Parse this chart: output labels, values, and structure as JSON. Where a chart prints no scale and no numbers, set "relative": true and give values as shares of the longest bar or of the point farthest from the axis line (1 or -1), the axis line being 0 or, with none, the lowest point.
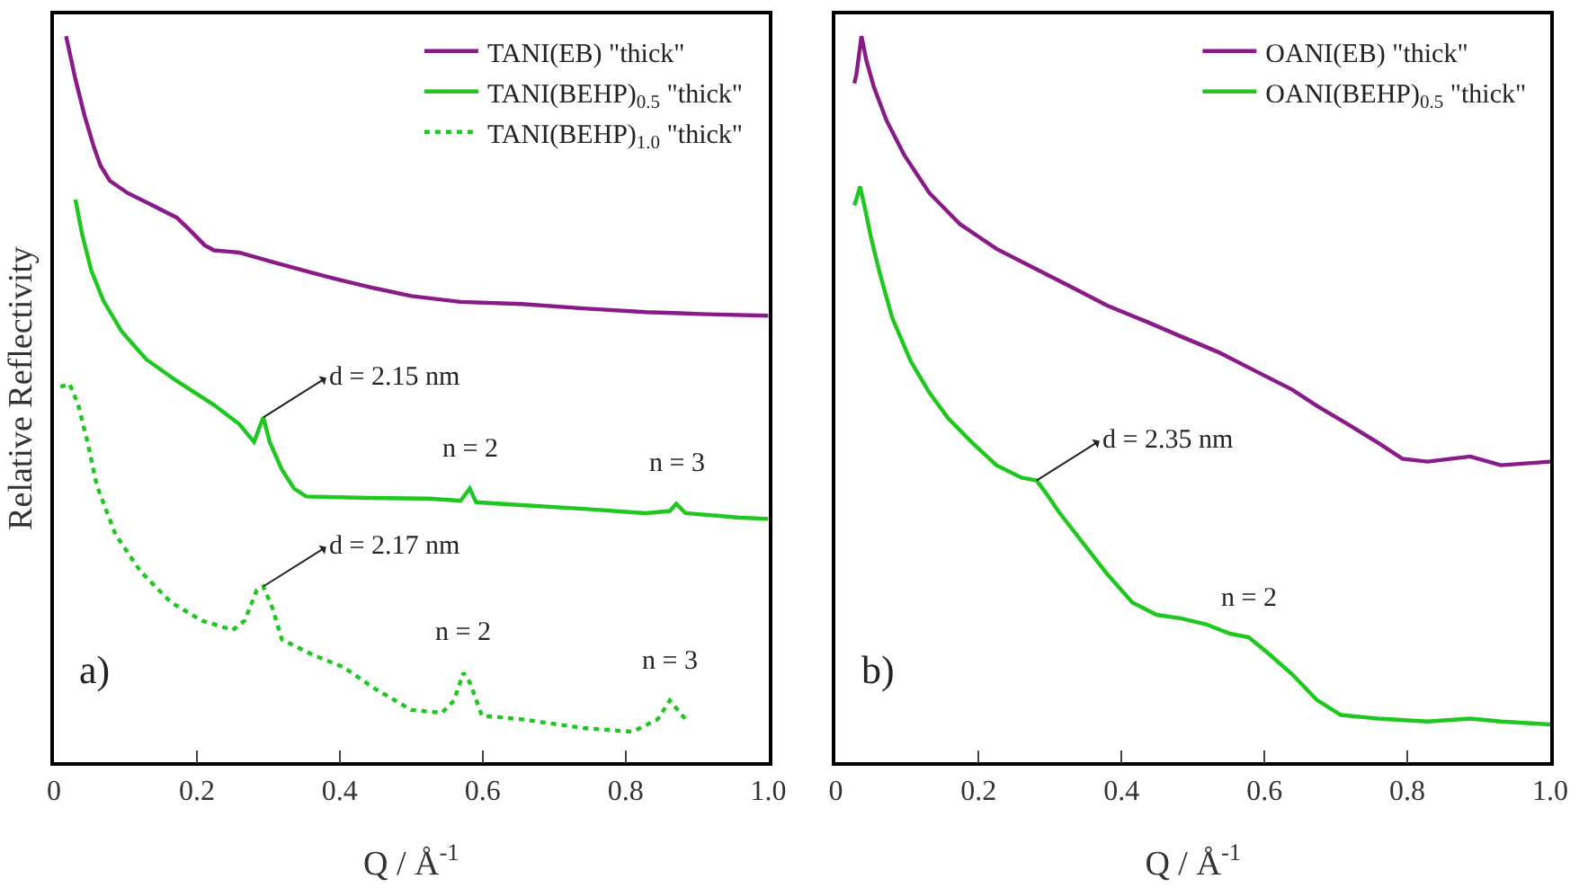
{
  "chart_data": [
    {
      "type": "line",
      "relative": true,
      "ylabel": "Relative Reflectivity",
      "xlabel": "Q / Å$^{-1}$",
      "xlim": [
        0,
        1
      ],
      "xticks": [
        0,
        0.2,
        0.4,
        0.6,
        0.8,
        {
          "value": 1,
          "label": "1.0"
        }
      ],
      "legend": "top right",
      "tick_labels": "x",
      "series": [
        {
          "name": "TANI(EB) \"thick\"",
          "color": "#8b1a89",
          "line_style": "solid",
          "x": [
            0.017,
            0.03,
            0.043,
            0.056,
            0.065,
            0.078,
            0.103,
            0.138,
            0.172,
            0.19,
            0.211,
            0.224,
            0.259,
            0.31,
            0.362,
            0.397,
            0.448,
            0.5,
            0.569,
            0.655,
            0.741,
            0.828,
            0.914,
            1.0
          ],
          "values": [
            1.0,
            0.941,
            0.89,
            0.847,
            0.822,
            0.801,
            0.784,
            0.767,
            0.75,
            0.733,
            0.712,
            0.705,
            0.702,
            0.688,
            0.674,
            0.665,
            0.653,
            0.642,
            0.634,
            0.631,
            0.625,
            0.62,
            0.617,
            0.615
          ]
        },
        {
          "name": "TANI(BEHP)$_{0.5}$ \"thick\"",
          "color": "#1ec81e",
          "line_style": "solid",
          "x": [
            0.03,
            0.039,
            0.052,
            0.069,
            0.095,
            0.129,
            0.172,
            0.224,
            0.259,
            0.28,
            0.293,
            0.302,
            0.319,
            0.336,
            0.353,
            0.44,
            0.526,
            0.569,
            0.582,
            0.591,
            0.655,
            0.741,
            0.828,
            0.862,
            0.871,
            0.884,
            0.957,
            1.0
          ],
          "values": [
            0.775,
            0.729,
            0.678,
            0.636,
            0.593,
            0.555,
            0.525,
            0.492,
            0.466,
            0.441,
            0.475,
            0.441,
            0.403,
            0.377,
            0.366,
            0.364,
            0.363,
            0.36,
            0.377,
            0.358,
            0.354,
            0.349,
            0.343,
            0.346,
            0.356,
            0.343,
            0.337,
            0.335
          ]
        },
        {
          "name": "TANI(BEHP)$_{1.0}$ \"thick\"",
          "color": "#1ec81e",
          "line_style": "dotted",
          "x": [
            0.009,
            0.022,
            0.034,
            0.047,
            0.06,
            0.086,
            0.121,
            0.164,
            0.207,
            0.25,
            0.267,
            0.284,
            0.293,
            0.306,
            0.319,
            0.362,
            0.405,
            0.448,
            0.5,
            0.543,
            0.56,
            0.573,
            0.582,
            0.599,
            0.655,
            0.741,
            0.81,
            0.845,
            0.862,
            0.884
          ],
          "values": [
            0.517,
            0.521,
            0.492,
            0.441,
            0.381,
            0.314,
            0.263,
            0.22,
            0.195,
            0.182,
            0.195,
            0.237,
            0.242,
            0.212,
            0.169,
            0.148,
            0.131,
            0.102,
            0.072,
            0.068,
            0.085,
            0.123,
            0.11,
            0.064,
            0.059,
            0.047,
            0.042,
            0.059,
            0.085,
            0.059
          ]
        }
      ],
      "annotations": [
        {
          "text": "d = 2.15 nm",
          "x": 0.293,
          "y": 0.475
        },
        {
          "text": "n = 2",
          "x": 0.582,
          "y": 0.377
        },
        {
          "text": "n = 3",
          "x": 0.871,
          "y": 0.356
        },
        {
          "text": "d = 2.17 nm",
          "x": 0.293,
          "y": 0.242
        },
        {
          "text": "n = 2",
          "x": 0.573,
          "y": 0.123
        },
        {
          "text": "n = 3",
          "x": 0.862,
          "y": 0.085
        },
        "a)"
      ]
    },
    {
      "type": "line",
      "relative": true,
      "xlabel": "Q / Å$^{-1}$",
      "xlim": [
        0,
        1
      ],
      "xticks": [
        0,
        0.2,
        0.4,
        0.6,
        0.8,
        {
          "value": 1,
          "label": "1.0"
        }
      ],
      "legend": "top right",
      "tick_labels": "x",
      "series": [
        {
          "name": "OANI(EB) \"thick\"",
          "color": "#8b1a89",
          "line_style": "solid",
          "x": [
            0.026,
            0.029,
            0.036,
            0.043,
            0.053,
            0.071,
            0.096,
            0.131,
            0.174,
            0.225,
            0.277,
            0.329,
            0.38,
            0.432,
            0.484,
            0.535,
            0.587,
            0.639,
            0.673,
            0.716,
            0.759,
            0.793,
            0.828,
            0.888,
            0.931,
            1.0
          ],
          "values": [
            0.935,
            0.948,
            1.0,
            0.966,
            0.931,
            0.884,
            0.836,
            0.784,
            0.741,
            0.707,
            0.681,
            0.655,
            0.629,
            0.608,
            0.586,
            0.565,
            0.539,
            0.513,
            0.491,
            0.466,
            0.44,
            0.418,
            0.414,
            0.421,
            0.409,
            0.414
          ]
        },
        {
          "name": "OANI(BEHP)$_{0.5}$ \"thick\"",
          "color": "#1ec81e",
          "line_style": "solid",
          "x": [
            0.026,
            0.029,
            0.034,
            0.04,
            0.049,
            0.062,
            0.079,
            0.105,
            0.131,
            0.157,
            0.191,
            0.225,
            0.26,
            0.281,
            0.294,
            0.312,
            0.346,
            0.38,
            0.415,
            0.449,
            0.484,
            0.518,
            0.552,
            0.578,
            0.604,
            0.639,
            0.673,
            0.707,
            0.759,
            0.828,
            0.888,
            0.931,
            1.0
          ],
          "values": [
            0.767,
            0.776,
            0.793,
            0.767,
            0.724,
            0.672,
            0.612,
            0.552,
            0.509,
            0.474,
            0.44,
            0.409,
            0.392,
            0.388,
            0.371,
            0.345,
            0.302,
            0.259,
            0.22,
            0.203,
            0.198,
            0.19,
            0.177,
            0.172,
            0.151,
            0.121,
            0.086,
            0.065,
            0.06,
            0.056,
            0.06,
            0.056,
            0.052
          ]
        }
      ],
      "annotations": [
        {
          "text": "d = 2.35 nm",
          "x": 0.281,
          "y": 0.388
        },
        {
          "text": "n = 2",
          "x": 0.578,
          "y": 0.172
        },
        "b)"
      ]
    }
  ]
}
